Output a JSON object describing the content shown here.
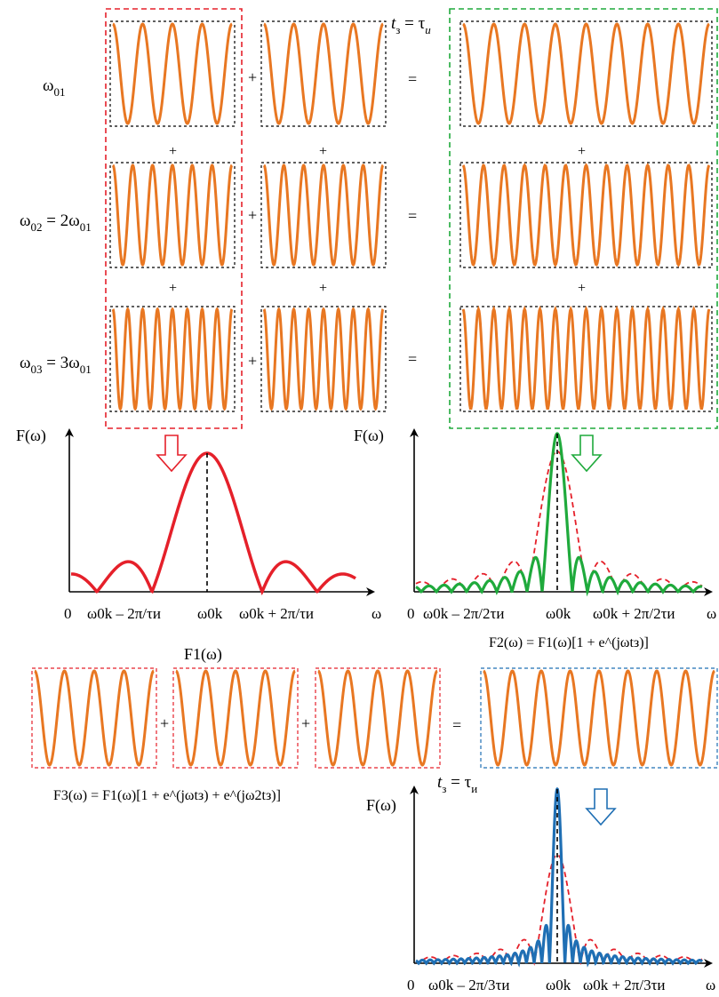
{
  "colors": {
    "wave": "#e87722",
    "red": "#e5202a",
    "green": "#1faa3c",
    "blue": "#1f6fb4",
    "frame_black": "#000000",
    "frame_red": "#e5202a",
    "frame_green": "#1faa3c",
    "frame_blue": "#1f6fb4"
  },
  "symbols": {
    "plus": "+",
    "equals": "=",
    "zero": "0",
    "omega": "ω"
  },
  "rows": [
    {
      "label_main": "ω",
      "label_sub": "01",
      "label_rhs": ""
    },
    {
      "label_main": "ω",
      "label_sub": "02",
      "label_rhs": " = 2ω",
      "label_rhs_sub": "01"
    },
    {
      "label_main": "ω",
      "label_sub": "03",
      "label_rhs": " = 3ω",
      "label_rhs_sub": "01"
    }
  ],
  "delay_label_top": {
    "t": "t",
    "sub": "з",
    "rhs": " = τ",
    "rhs_sub": "и"
  },
  "delay_label_bottom": {
    "t": "t",
    "sub": "з",
    "rhs": " = τ",
    "rhs_sub": "и"
  },
  "spectrum_axis_label": "F(ω)",
  "spectrum1": {
    "x_labels": [
      "0",
      "ω0k – 2π/τи",
      "ω0k",
      "ω0k + 2π/τи",
      "ω"
    ],
    "caption": "F1(ω)"
  },
  "spectrum2": {
    "x_labels": [
      "0",
      "ω0k – 2π/2τи",
      "ω0k",
      "ω0k + 2π/2τи",
      "ω"
    ],
    "caption": "F2(ω) = F1(ω)[1 + e^(jωtз)]"
  },
  "spectrum3": {
    "x_labels": [
      "0",
      "ω0k – 2π/3τи",
      "ω0k",
      "ω0k + 2π/3τи",
      "ω"
    ],
    "caption": "F3(ω) = F1(ω)[1 + e^(jωtз) + e^(jω2tз)]"
  }
}
